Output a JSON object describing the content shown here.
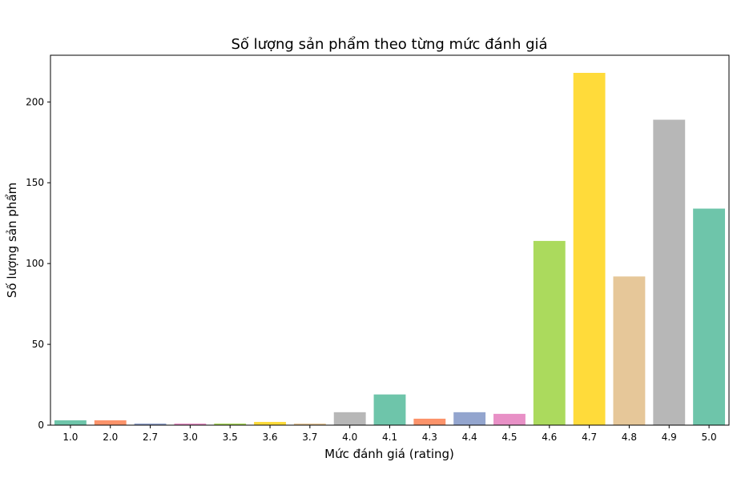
{
  "chart_data": {
    "type": "bar",
    "title": "Số lượng sản phẩm theo từng mức đánh giá",
    "xlabel": "Mức đánh giá (rating)",
    "ylabel": "Số lượng sản phẩm",
    "categories": [
      "1.0",
      "2.0",
      "2.7",
      "3.0",
      "3.5",
      "3.6",
      "3.7",
      "4.0",
      "4.1",
      "4.3",
      "4.4",
      "4.5",
      "4.6",
      "4.7",
      "4.8",
      "4.9",
      "5.0"
    ],
    "values": [
      3,
      3,
      1,
      1,
      1,
      2,
      1,
      8,
      19,
      4,
      8,
      7,
      114,
      218,
      92,
      189,
      134
    ],
    "colors": [
      "#66c2a5",
      "#fc8d62",
      "#8da0cb",
      "#e78ac3",
      "#a6d854",
      "#ffd92f",
      "#e5c494",
      "#b3b3b3",
      "#66c2a5",
      "#fc8d62",
      "#8da0cb",
      "#e78ac3",
      "#a6d854",
      "#ffd92f",
      "#e5c494",
      "#b3b3b3",
      "#66c2a5"
    ],
    "bar_alpha": 0.95,
    "yticks": [
      0,
      50,
      100,
      150,
      200
    ],
    "ylim": [
      0,
      228.9
    ],
    "grid": false,
    "legend": "none"
  }
}
